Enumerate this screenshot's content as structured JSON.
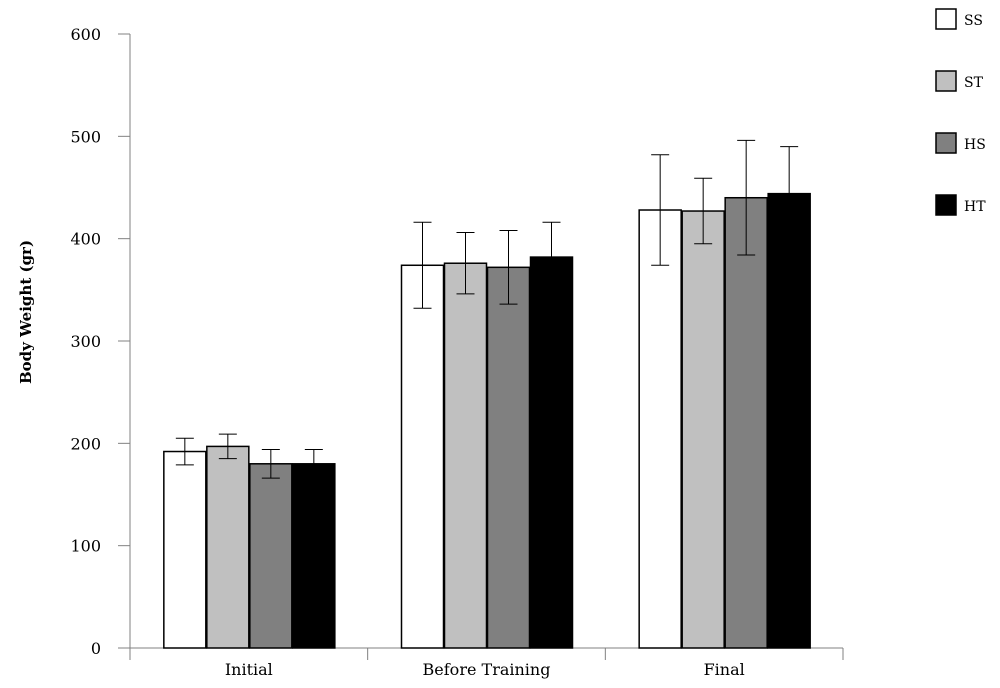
{
  "chart_data": {
    "type": "bar",
    "title": "",
    "xlabel": "",
    "ylabel": "Body Weight (gr)",
    "ylim": [
      0,
      600
    ],
    "yticks": [
      0,
      100,
      200,
      300,
      400,
      500,
      600
    ],
    "categories": [
      "Initial",
      "Before Training",
      "Final"
    ],
    "series": [
      {
        "name": "SS",
        "color": "#ffffff",
        "values": [
          192,
          374,
          428
        ],
        "errors": [
          13,
          42,
          54
        ]
      },
      {
        "name": "ST",
        "color": "#c0c0c0",
        "values": [
          197,
          376,
          427
        ],
        "errors": [
          12,
          30,
          32
        ]
      },
      {
        "name": "HS",
        "color": "#808080",
        "values": [
          180,
          372,
          440
        ],
        "errors": [
          14,
          36,
          56
        ]
      },
      {
        "name": "HT",
        "color": "#000000",
        "values": [
          180,
          382,
          444
        ],
        "errors": [
          14,
          34,
          46
        ]
      }
    ],
    "legend": "top-right",
    "grid": false
  }
}
